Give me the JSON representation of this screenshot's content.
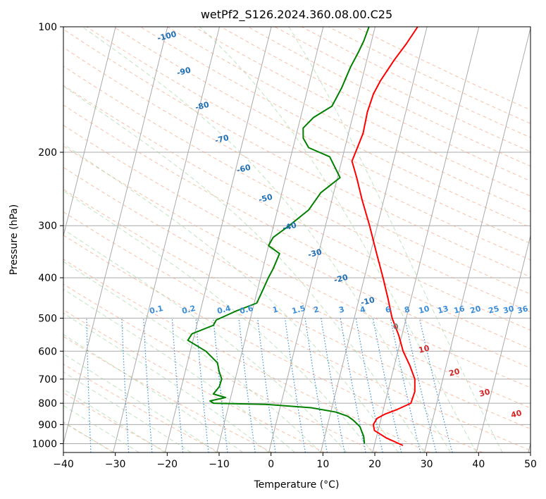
{
  "chart_data": {
    "type": "line",
    "title": "wetPf2_S126.2024.360.08.00.C25",
    "xlabel": "Temperature (°C)",
    "ylabel": "Pressure (hPa)",
    "xlim": [
      -40,
      50
    ],
    "ylim": [
      1050,
      100
    ],
    "y_scale": "log",
    "grid": true,
    "x_ticks": [
      -40,
      -30,
      -20,
      -10,
      0,
      10,
      20,
      30,
      40,
      50
    ],
    "y_ticks": [
      100,
      200,
      300,
      400,
      500,
      600,
      700,
      800,
      900,
      1000
    ],
    "series": [
      {
        "name": "",
        "color": "#ff0000",
        "points": [
          [
            25.5,
            1010
          ],
          [
            22,
            970
          ],
          [
            19.3,
            930
          ],
          [
            18.8,
            900
          ],
          [
            19.2,
            870
          ],
          [
            20.5,
            850
          ],
          [
            22.5,
            830
          ],
          [
            25,
            800
          ],
          [
            25.2,
            750
          ],
          [
            24.6,
            700
          ],
          [
            23,
            650
          ],
          [
            21,
            600
          ],
          [
            19.4,
            550
          ],
          [
            17.3,
            500
          ],
          [
            15.6,
            450
          ],
          [
            13.6,
            400
          ],
          [
            11.2,
            350
          ],
          [
            8.5,
            300
          ],
          [
            5.8,
            260
          ],
          [
            3.7,
            230
          ],
          [
            2,
            210
          ],
          [
            2.4,
            195
          ],
          [
            2.8,
            180
          ],
          [
            2.6,
            160
          ],
          [
            2.9,
            145
          ],
          [
            3.6,
            135
          ],
          [
            5.3,
            120
          ],
          [
            6.8,
            110
          ],
          [
            8.2,
            100
          ]
        ]
      },
      {
        "name": "",
        "color": "#008000",
        "points": [
          [
            18,
            1000
          ],
          [
            17.5,
            960
          ],
          [
            16.3,
            910
          ],
          [
            14.8,
            880
          ],
          [
            13.5,
            860
          ],
          [
            11,
            840
          ],
          [
            6,
            820
          ],
          [
            -3,
            805
          ],
          [
            -13,
            800
          ],
          [
            -13.8,
            790
          ],
          [
            -11,
            775
          ],
          [
            -13.5,
            760
          ],
          [
            -12.7,
            730
          ],
          [
            -12.6,
            700
          ],
          [
            -13.5,
            670
          ],
          [
            -14.2,
            640
          ],
          [
            -17,
            600
          ],
          [
            -21,
            565
          ],
          [
            -20.5,
            545
          ],
          [
            -16.8,
            520
          ],
          [
            -16.5,
            505
          ],
          [
            -13,
            480
          ],
          [
            -9.5,
            460
          ],
          [
            -9,
            430
          ],
          [
            -8.5,
            400
          ],
          [
            -8,
            380
          ],
          [
            -7.5,
            350
          ],
          [
            -10,
            335
          ],
          [
            -9.5,
            320
          ],
          [
            -7,
            300
          ],
          [
            -4,
            275
          ],
          [
            -2.5,
            250
          ],
          [
            0.5,
            230
          ],
          [
            -2.5,
            205
          ],
          [
            -7,
            195
          ],
          [
            -8.5,
            185
          ],
          [
            -9,
            175
          ],
          [
            -7.5,
            165
          ],
          [
            -4.5,
            155
          ],
          [
            -3.5,
            140
          ],
          [
            -2.8,
            125
          ],
          [
            -2,
            115
          ],
          [
            -1.5,
            108
          ],
          [
            -1.2,
            100
          ]
        ]
      }
    ],
    "dry_adiabat_labels": [
      "-100",
      "-90",
      "-80",
      "-70",
      "-60",
      "-50",
      "-40",
      "-30",
      "-20",
      "-10",
      "0",
      "10",
      "20",
      "30",
      "40"
    ],
    "mixing_ratio_labels": [
      "0.1",
      "0.2",
      "0.4",
      "0.6",
      "1",
      "1.5",
      "2",
      "3",
      "4",
      "6",
      "8",
      "10",
      "13",
      "16",
      "20",
      "25",
      "30",
      "36"
    ],
    "colors": {
      "temperature": "#ff0000",
      "dewpoint": "#008000",
      "isotherm": "#aaaaaa",
      "dry_adiabat": "#f4a582",
      "moist_adiabat": "#9fd49f",
      "mixing_ratio": "#3b8fd9",
      "label_blue": "#1f6fb4",
      "label_red": "#d62728",
      "label_gray": "#7f7f7f"
    }
  }
}
